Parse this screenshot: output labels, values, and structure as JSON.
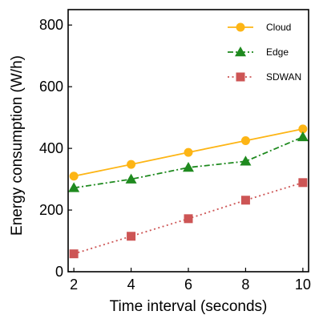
{
  "chart_data": {
    "type": "line",
    "title": "",
    "xlabel": "Time interval (seconds)",
    "ylabel": "Energy consumption (W/h)",
    "x": [
      2,
      4,
      6,
      8,
      10
    ],
    "xlim": [
      1.8,
      10.2
    ],
    "ylim": [
      0,
      850
    ],
    "xticks": [
      2,
      4,
      6,
      8,
      10
    ],
    "yticks": [
      0,
      200,
      400,
      600,
      800
    ],
    "grid": false,
    "legend_position": "top-right",
    "series": [
      {
        "name": "Cloud",
        "values": [
          310,
          348,
          387,
          425,
          463
        ],
        "color": "#FDB515",
        "marker": "circle",
        "line_style": "solid"
      },
      {
        "name": "Edge",
        "values": [
          272,
          300,
          338,
          358,
          437
        ],
        "color": "#1F8A1F",
        "marker": "triangle",
        "line_style": "dashdot"
      },
      {
        "name": "SDWAN",
        "values": [
          58,
          115,
          172,
          232,
          289
        ],
        "color": "#CD5555",
        "marker": "square",
        "line_style": "dotted"
      }
    ]
  }
}
